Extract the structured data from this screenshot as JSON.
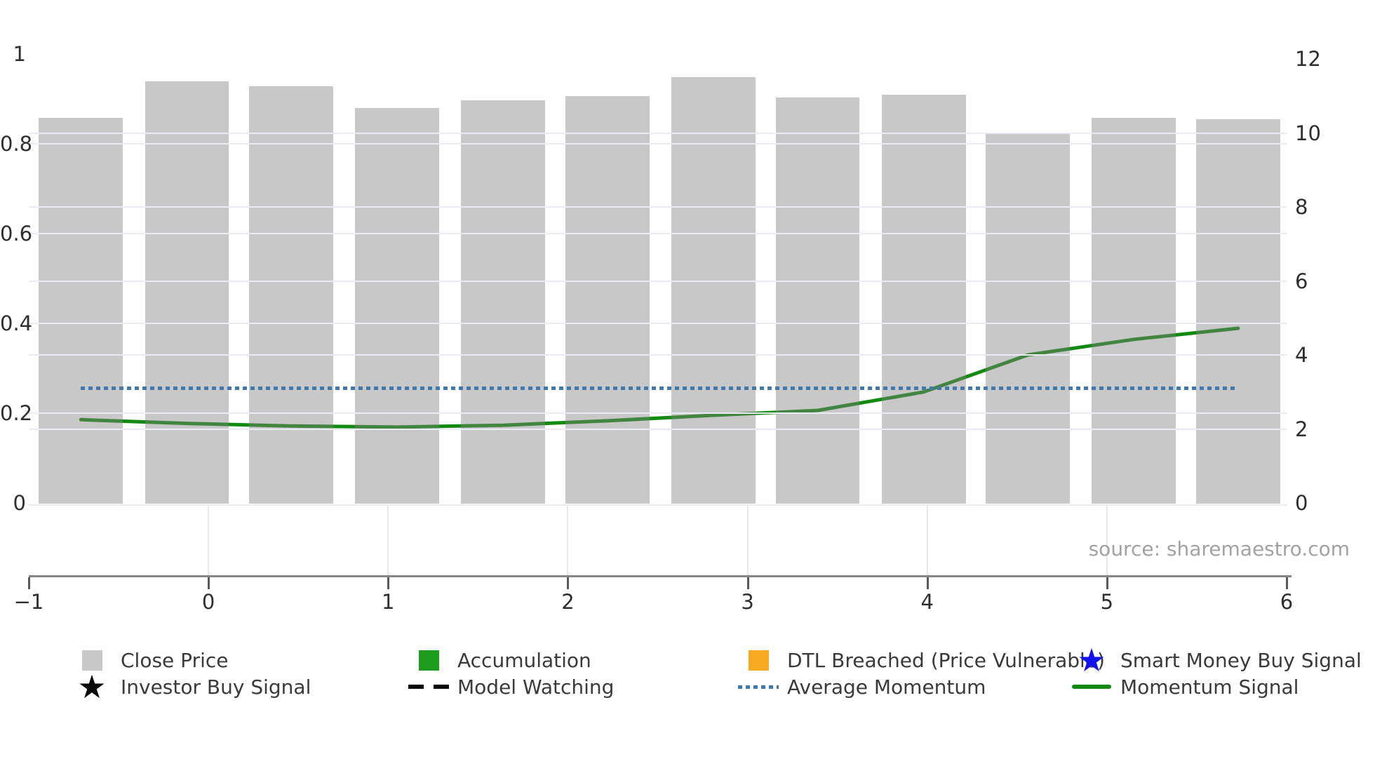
{
  "source_note": "source: sharemaestro.com",
  "colors": {
    "bar_fill": "#c8c8c8",
    "bar_fill_rgba": "rgba(128,128,128,0.43)",
    "momentum_line": "#128a12",
    "average_momentum": "#4179ad",
    "accumulation": "#1e9c1e",
    "dtl_breached": "#f9a822",
    "smart_money_star": "#1212f0",
    "investor_star": "#0a0a0a",
    "model_watching": "#0a0a0a",
    "axis_line": "#868686",
    "tick_text": "#2e2e2e",
    "legend_text": "#3a3a3a",
    "gridline": "#e9ecf3"
  },
  "axes": {
    "x": {
      "range": [
        -1,
        6
      ],
      "ticks": [
        {
          "v": -1,
          "label": "−1"
        },
        {
          "v": 0,
          "label": "0"
        },
        {
          "v": 1,
          "label": "1"
        },
        {
          "v": 2,
          "label": "2"
        },
        {
          "v": 3,
          "label": "3"
        },
        {
          "v": 4,
          "label": "4"
        },
        {
          "v": 5,
          "label": "5"
        },
        {
          "v": 6,
          "label": "6"
        }
      ]
    },
    "y_left": {
      "range": [
        0,
        1
      ],
      "ticks": [
        {
          "v": 0,
          "label": "0"
        },
        {
          "v": 0.2,
          "label": "0.2"
        },
        {
          "v": 0.4,
          "label": "0.4"
        },
        {
          "v": 0.6,
          "label": "0.6"
        },
        {
          "v": 0.8,
          "label": "0.8"
        },
        {
          "v": 1,
          "label": "1"
        }
      ]
    },
    "y_right": {
      "range": [
        0,
        12
      ],
      "ticks": [
        {
          "v": 0,
          "label": "0"
        },
        {
          "v": 2,
          "label": "2"
        },
        {
          "v": 4,
          "label": "4"
        },
        {
          "v": 6,
          "label": "6"
        },
        {
          "v": 8,
          "label": "8"
        },
        {
          "v": 10,
          "label": "10"
        },
        {
          "v": 12,
          "label": "12"
        }
      ]
    }
  },
  "chart_data": {
    "type": "combo-bar-line",
    "title": "",
    "x_range": [
      -1,
      6
    ],
    "y_left_range": [
      0,
      1
    ],
    "y_right_range": [
      0,
      12
    ],
    "grid": "on",
    "legend_position": "bottom",
    "x": [
      -0.71,
      -0.12,
      0.46,
      1.05,
      1.64,
      2.22,
      2.81,
      3.39,
      3.98,
      4.56,
      5.15,
      5.73
    ],
    "bar_width_units": 0.468,
    "series": [
      {
        "name": "Close Price",
        "type": "bar",
        "axis": "left",
        "values": [
          0.858,
          0.939,
          0.928,
          0.88,
          0.897,
          0.906,
          0.949,
          0.903,
          0.909,
          0.823,
          0.858,
          0.855
        ]
      },
      {
        "name": "Momentum Signal",
        "type": "line",
        "axis": "right",
        "values": [
          2.25,
          2.15,
          2.08,
          2.05,
          2.1,
          2.22,
          2.37,
          2.5,
          3.0,
          4.0,
          4.42,
          4.72
        ]
      },
      {
        "name": "Average Momentum",
        "type": "dotted-hline",
        "axis": "right",
        "value": 3.1
      }
    ],
    "signals_shown_on_plot": "none"
  },
  "legend": {
    "items": [
      {
        "label": "Close Price",
        "marker": "square",
        "color": "#c8c8c8",
        "col": 0,
        "row": 0
      },
      {
        "label": "Accumulation",
        "marker": "square",
        "color": "#1e9c1e",
        "col": 1,
        "row": 0
      },
      {
        "label": "DTL Breached (Price Vulnerable)",
        "marker": "square",
        "color": "#f9a822",
        "col": 2,
        "row": 0
      },
      {
        "label": "Smart Money Buy Signal",
        "marker": "star",
        "color": "#1212f0",
        "col": 3,
        "row": 0
      },
      {
        "label": "Investor Buy Signal",
        "marker": "star",
        "color": "#0a0a0a",
        "col": 0,
        "row": 1
      },
      {
        "label": "Model Watching",
        "marker": "dashes",
        "color": "#0a0a0a",
        "col": 1,
        "row": 1
      },
      {
        "label": "Average Momentum",
        "marker": "dotted",
        "color": "#4179ad",
        "col": 2,
        "row": 1
      },
      {
        "label": "Momentum Signal",
        "marker": "line",
        "color": "#128a12",
        "col": 3,
        "row": 1
      }
    ]
  }
}
